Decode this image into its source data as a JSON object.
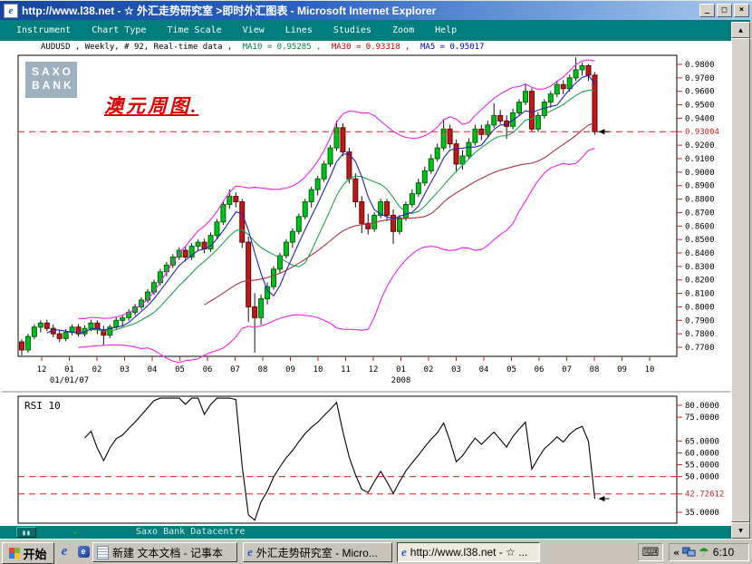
{
  "window": {
    "title": "http://www.l38.net - ☆ 外汇走势研究室 >即时外汇图表 - Microsoft Internet Explorer",
    "controls": [
      {
        "name": "minimize",
        "glyph": "_"
      },
      {
        "name": "maximize",
        "glyph": "□"
      },
      {
        "name": "close",
        "glyph": "×"
      }
    ]
  },
  "menu": {
    "items": [
      "Instrument",
      "Chart Type",
      "Time Scale",
      "View",
      "Lines",
      "Studies",
      "Zoom",
      "Help"
    ]
  },
  "header": {
    "instrument": "AUDUSD , Weekly, # 92, Real-time data ,",
    "ma10": "MA10 = 0.95285 ,",
    "ma30": "MA30 = 0.93318 ,",
    "ma5": "MA5 = 0.95017",
    "ma10_color": "#008040",
    "ma30_color": "#cc0000",
    "ma5_color": "#0000cc"
  },
  "logo": {
    "line1": "SAXO",
    "line2": "BANK"
  },
  "annotation": {
    "text": "澳元周图.",
    "color": "#dd0000"
  },
  "scrollbar": {
    "up": "▲",
    "down": "▼"
  },
  "chart_data": [
    {
      "type": "candlestick",
      "symbol": "AUDUSD",
      "timeframe": "Weekly",
      "bar_count": 92,
      "ylim": [
        0.7633,
        0.9867
      ],
      "y_ticks": [
        "0.9800",
        "0.9700",
        "0.9600",
        "0.9500",
        "0.9400",
        "0.9200",
        "0.9100",
        "0.9000",
        "0.8900",
        "0.8800",
        "0.8700",
        "0.8600",
        "0.8500",
        "0.8400",
        "0.8300",
        "0.8200",
        "0.8100",
        "0.8000",
        "0.7900",
        "0.7800",
        "0.7700"
      ],
      "last_price": 0.93004,
      "last_price_label": "0.93004",
      "x_ticks": [
        "12",
        "01",
        "02",
        "03",
        "04",
        "05",
        "06",
        "07",
        "08",
        "09",
        "10",
        "11",
        "12",
        "01",
        "02",
        "03",
        "04",
        "05",
        "06",
        "07",
        "08",
        "09",
        "10"
      ],
      "x_sub_labels": [
        {
          "text": "01/01/07",
          "tick": 1
        },
        {
          "text": "2008",
          "tick": 13
        }
      ],
      "hline": {
        "value": 0.93004,
        "color": "#cc2222",
        "style": "dashed"
      },
      "candle_colors": {
        "up": "#00c020",
        "down": "#bb1a1a",
        "up_edge": "#006600",
        "down_edge": "#6e0000",
        "wick": "#111111"
      },
      "overlays": [
        {
          "name": "Bollinger",
          "period": 20,
          "mult": 2,
          "color": "#ee22ee"
        },
        {
          "name": "MA30",
          "period": 30,
          "color": "#aa3344"
        },
        {
          "name": "MA10",
          "period": 10,
          "color": "#22a050"
        },
        {
          "name": "MA5",
          "period": 5,
          "color": "#2222bb"
        }
      ],
      "ohlc": [
        [
          0.774,
          0.776,
          0.764,
          0.768
        ],
        [
          0.768,
          0.78,
          0.766,
          0.778
        ],
        [
          0.778,
          0.787,
          0.776,
          0.785
        ],
        [
          0.785,
          0.79,
          0.781,
          0.788
        ],
        [
          0.788,
          0.7905,
          0.782,
          0.784
        ],
        [
          0.784,
          0.787,
          0.7775,
          0.78
        ],
        [
          0.78,
          0.783,
          0.774,
          0.7765
        ],
        [
          0.7765,
          0.7835,
          0.7745,
          0.781
        ],
        [
          0.781,
          0.787,
          0.7788,
          0.785
        ],
        [
          0.785,
          0.7872,
          0.778,
          0.78
        ],
        [
          0.78,
          0.7862,
          0.7782,
          0.784
        ],
        [
          0.784,
          0.7905,
          0.782,
          0.788
        ],
        [
          0.788,
          0.79,
          0.7798,
          0.783
        ],
        [
          0.783,
          0.786,
          0.7718,
          0.779
        ],
        [
          0.779,
          0.7868,
          0.7768,
          0.785
        ],
        [
          0.785,
          0.7922,
          0.783,
          0.79
        ],
        [
          0.79,
          0.7942,
          0.7858,
          0.792
        ],
        [
          0.792,
          0.7982,
          0.7898,
          0.796
        ],
        [
          0.796,
          0.8022,
          0.7938,
          0.8
        ],
        [
          0.8,
          0.8072,
          0.7978,
          0.805
        ],
        [
          0.805,
          0.8132,
          0.8028,
          0.811
        ],
        [
          0.811,
          0.8202,
          0.8088,
          0.818
        ],
        [
          0.818,
          0.8282,
          0.8158,
          0.826
        ],
        [
          0.826,
          0.8332,
          0.8228,
          0.831
        ],
        [
          0.831,
          0.8392,
          0.8288,
          0.837
        ],
        [
          0.837,
          0.8442,
          0.8348,
          0.842
        ],
        [
          0.842,
          0.8445,
          0.8338,
          0.837
        ],
        [
          0.837,
          0.8472,
          0.8348,
          0.845
        ],
        [
          0.845,
          0.8502,
          0.8418,
          0.848
        ],
        [
          0.848,
          0.8505,
          0.8398,
          0.843
        ],
        [
          0.843,
          0.8552,
          0.8408,
          0.853
        ],
        [
          0.853,
          0.8652,
          0.8508,
          0.863
        ],
        [
          0.863,
          0.8782,
          0.8608,
          0.876
        ],
        [
          0.876,
          0.8872,
          0.8728,
          0.882
        ],
        [
          0.882,
          0.8852,
          0.8738,
          0.878
        ],
        [
          0.878,
          0.8802,
          0.8438,
          0.848
        ],
        [
          0.848,
          0.8522,
          0.7888,
          0.8
        ],
        [
          0.8,
          0.8102,
          0.766,
          0.792
        ],
        [
          0.792,
          0.8092,
          0.7868,
          0.806
        ],
        [
          0.806,
          0.8182,
          0.8018,
          0.815
        ],
        [
          0.815,
          0.8302,
          0.8128,
          0.828
        ],
        [
          0.828,
          0.8402,
          0.8248,
          0.838
        ],
        [
          0.838,
          0.8502,
          0.8358,
          0.848
        ],
        [
          0.848,
          0.8582,
          0.8438,
          0.856
        ],
        [
          0.856,
          0.8692,
          0.8538,
          0.867
        ],
        [
          0.867,
          0.8802,
          0.8648,
          0.878
        ],
        [
          0.878,
          0.8892,
          0.8738,
          0.887
        ],
        [
          0.887,
          0.8972,
          0.8828,
          0.895
        ],
        [
          0.895,
          0.9082,
          0.8928,
          0.906
        ],
        [
          0.906,
          0.9202,
          0.9038,
          0.918
        ],
        [
          0.918,
          0.9382,
          0.9158,
          0.933
        ],
        [
          0.933,
          0.9362,
          0.9118,
          0.915
        ],
        [
          0.915,
          0.9182,
          0.8918,
          0.895
        ],
        [
          0.895,
          0.8992,
          0.8738,
          0.878
        ],
        [
          0.878,
          0.8822,
          0.8548,
          0.862
        ],
        [
          0.862,
          0.8692,
          0.8538,
          0.858
        ],
        [
          0.858,
          0.8702,
          0.8558,
          0.868
        ],
        [
          0.868,
          0.8802,
          0.8658,
          0.878
        ],
        [
          0.878,
          0.8802,
          0.8638,
          0.868
        ],
        [
          0.868,
          0.8722,
          0.8468,
          0.856
        ],
        [
          0.856,
          0.8682,
          0.8538,
          0.866
        ],
        [
          0.866,
          0.8782,
          0.8638,
          0.876
        ],
        [
          0.876,
          0.8872,
          0.8738,
          0.884
        ],
        [
          0.884,
          0.8952,
          0.8818,
          0.892
        ],
        [
          0.892,
          0.9042,
          0.8898,
          0.901
        ],
        [
          0.901,
          0.9132,
          0.8988,
          0.91
        ],
        [
          0.91,
          0.9212,
          0.9078,
          0.918
        ],
        [
          0.918,
          0.9392,
          0.9158,
          0.932
        ],
        [
          0.932,
          0.9352,
          0.9178,
          0.921
        ],
        [
          0.921,
          0.9242,
          0.8998,
          0.906
        ],
        [
          0.906,
          0.9162,
          0.9018,
          0.912
        ],
        [
          0.912,
          0.9252,
          0.9098,
          0.922
        ],
        [
          0.922,
          0.9352,
          0.9198,
          0.932
        ],
        [
          0.932,
          0.9352,
          0.9238,
          0.928
        ],
        [
          0.928,
          0.9382,
          0.9258,
          0.935
        ],
        [
          0.935,
          0.9512,
          0.9328,
          0.942
        ],
        [
          0.942,
          0.9462,
          0.9358,
          0.938
        ],
        [
          0.938,
          0.9422,
          0.9248,
          0.934
        ],
        [
          0.934,
          0.9472,
          0.9318,
          0.944
        ],
        [
          0.944,
          0.9542,
          0.9418,
          0.952
        ],
        [
          0.952,
          0.9652,
          0.9498,
          0.96
        ],
        [
          0.96,
          0.9622,
          0.9298,
          0.932
        ],
        [
          0.932,
          0.9442,
          0.9298,
          0.942
        ],
        [
          0.942,
          0.9542,
          0.9398,
          0.952
        ],
        [
          0.952,
          0.9602,
          0.9478,
          0.958
        ],
        [
          0.958,
          0.9672,
          0.9558,
          0.965
        ],
        [
          0.965,
          0.9682,
          0.9578,
          0.962
        ],
        [
          0.962,
          0.9722,
          0.9598,
          0.97
        ],
        [
          0.97,
          0.9852,
          0.9678,
          0.976
        ],
        [
          0.976,
          0.9812,
          0.9718,
          0.979
        ],
        [
          0.979,
          0.9802,
          0.9678,
          0.972
        ],
        [
          0.972,
          0.9742,
          0.9278,
          0.93004
        ]
      ]
    },
    {
      "type": "line",
      "label": "RSI 10",
      "period": 10,
      "ylim": [
        30.4,
        83.8
      ],
      "y_ticks": [
        {
          "label": "80.0000",
          "value": 80
        },
        {
          "label": "75.0000",
          "value": 75
        },
        {
          "label": "65.0000",
          "value": 65
        },
        {
          "label": "60.0000",
          "value": 60
        },
        {
          "label": "55.0000",
          "value": 55
        },
        {
          "label": "50.0000",
          "value": 50
        },
        {
          "label": "35.0000",
          "value": 35
        }
      ],
      "current_label": "42.72612",
      "current_value": 42.72612,
      "hlines": [
        {
          "value": 50,
          "color": "#cc2222"
        },
        {
          "value": 42.72612,
          "color": "#cc2222"
        }
      ],
      "line_color": "#000000"
    }
  ],
  "status_bar": {
    "text": "Saxo Bank Datacentre",
    "crosshair_glyph": "+"
  },
  "taskbar": {
    "start_label": "开始",
    "quick_launch_ie": "e",
    "quick_launch_app": "e",
    "tasks": [
      {
        "label": "新建 文本文档 - 记事本",
        "icon": "notepad-icon",
        "active": false
      },
      {
        "label": "外汇走势研究室 - Micro...",
        "icon": "ie-icon",
        "active": false
      },
      {
        "label": "http://www.l38.net - ☆ ...",
        "icon": "ie-icon",
        "active": true
      }
    ],
    "tray": {
      "collapse": "«",
      "time": "6:10"
    }
  }
}
